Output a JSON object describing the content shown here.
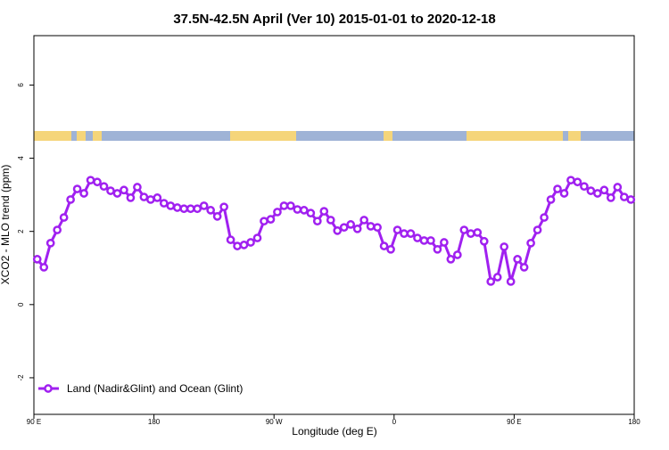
{
  "chart_data": {
    "type": "line",
    "title": "37.5N-42.5N April (Ver 10)   2015-01-01 to 2020-12-18",
    "x_label": "Longitude (deg E)",
    "y_label": "XCO2 - MLO trend (ppm)",
    "x": [
      92.5,
      97.5,
      102.5,
      107.5,
      112.5,
      117.5,
      122.5,
      127.5,
      132.5,
      137.5,
      142.5,
      147.5,
      152.5,
      157.5,
      162.5,
      167.5,
      172.5,
      177.5,
      182.5,
      187.5,
      192.5,
      197.5,
      202.5,
      207.5,
      212.5,
      217.5,
      222.5,
      227.5,
      232.5,
      237.5,
      242.5,
      247.5,
      252.5,
      257.5,
      262.5,
      267.5,
      272.5,
      277.5,
      282.5,
      287.5,
      292.5,
      297.5,
      302.5,
      307.5,
      312.5,
      317.5,
      322.5,
      327.5,
      332.5,
      337.5,
      342.5,
      347.5,
      352.5,
      357.5,
      362.5,
      367.5,
      372.5,
      377.5,
      382.5,
      387.5,
      392.5,
      397.5,
      402.5,
      407.5,
      412.5,
      417.5,
      422.5,
      427.5,
      432.5,
      437.5,
      442.5,
      447.5,
      452.5,
      457.5,
      462.5,
      467.5,
      472.5,
      477.5,
      482.5,
      487.5,
      492.5,
      497.5,
      502.5,
      507.5,
      512.5,
      517.5,
      522.5,
      527.5,
      532.5,
      537.5
    ],
    "series": [
      {
        "name": "Land (Nadir&Glint) and Ocean (Glint)",
        "color": "#a020f0",
        "values": [
          1.24,
          1.02,
          1.68,
          2.04,
          2.38,
          2.87,
          3.16,
          3.04,
          3.4,
          3.35,
          3.23,
          3.11,
          3.04,
          3.13,
          2.92,
          3.21,
          2.94,
          2.87,
          2.92,
          2.77,
          2.7,
          2.65,
          2.62,
          2.62,
          2.62,
          2.7,
          2.58,
          2.41,
          2.67,
          1.77,
          1.6,
          1.63,
          1.7,
          1.82,
          2.28,
          2.33,
          2.53,
          2.7,
          2.7,
          2.6,
          2.58,
          2.5,
          2.28,
          2.55,
          2.31,
          2.02,
          2.11,
          2.19,
          2.07,
          2.31,
          2.14,
          2.11,
          1.6,
          1.51,
          2.04,
          1.94,
          1.94,
          1.82,
          1.75,
          1.75,
          1.51,
          1.7,
          1.24,
          1.36,
          2.04,
          1.94,
          1.97,
          1.73,
          0.63,
          0.75,
          1.58,
          0.63,
          1.24,
          1.02,
          1.68,
          2.04,
          2.38,
          2.87,
          3.16,
          3.04,
          3.4,
          3.35,
          3.23,
          3.11,
          3.04,
          3.13,
          2.92,
          3.21,
          2.94,
          2.87
        ]
      }
    ],
    "xlim": [
      90,
      540
    ],
    "xticks": [
      {
        "value": 90,
        "label": "90 E"
      },
      180,
      {
        "value": 270,
        "label": "90 W"
      },
      {
        "value": 360,
        "label": "0"
      },
      {
        "value": 450,
        "label": "90 E"
      },
      {
        "value": 540,
        "label": "180"
      }
    ],
    "ylim": [
      -3,
      7.35
    ],
    "yticks": [
      -2,
      0,
      2,
      4,
      6
    ],
    "legend": "bottom-left"
  }
}
